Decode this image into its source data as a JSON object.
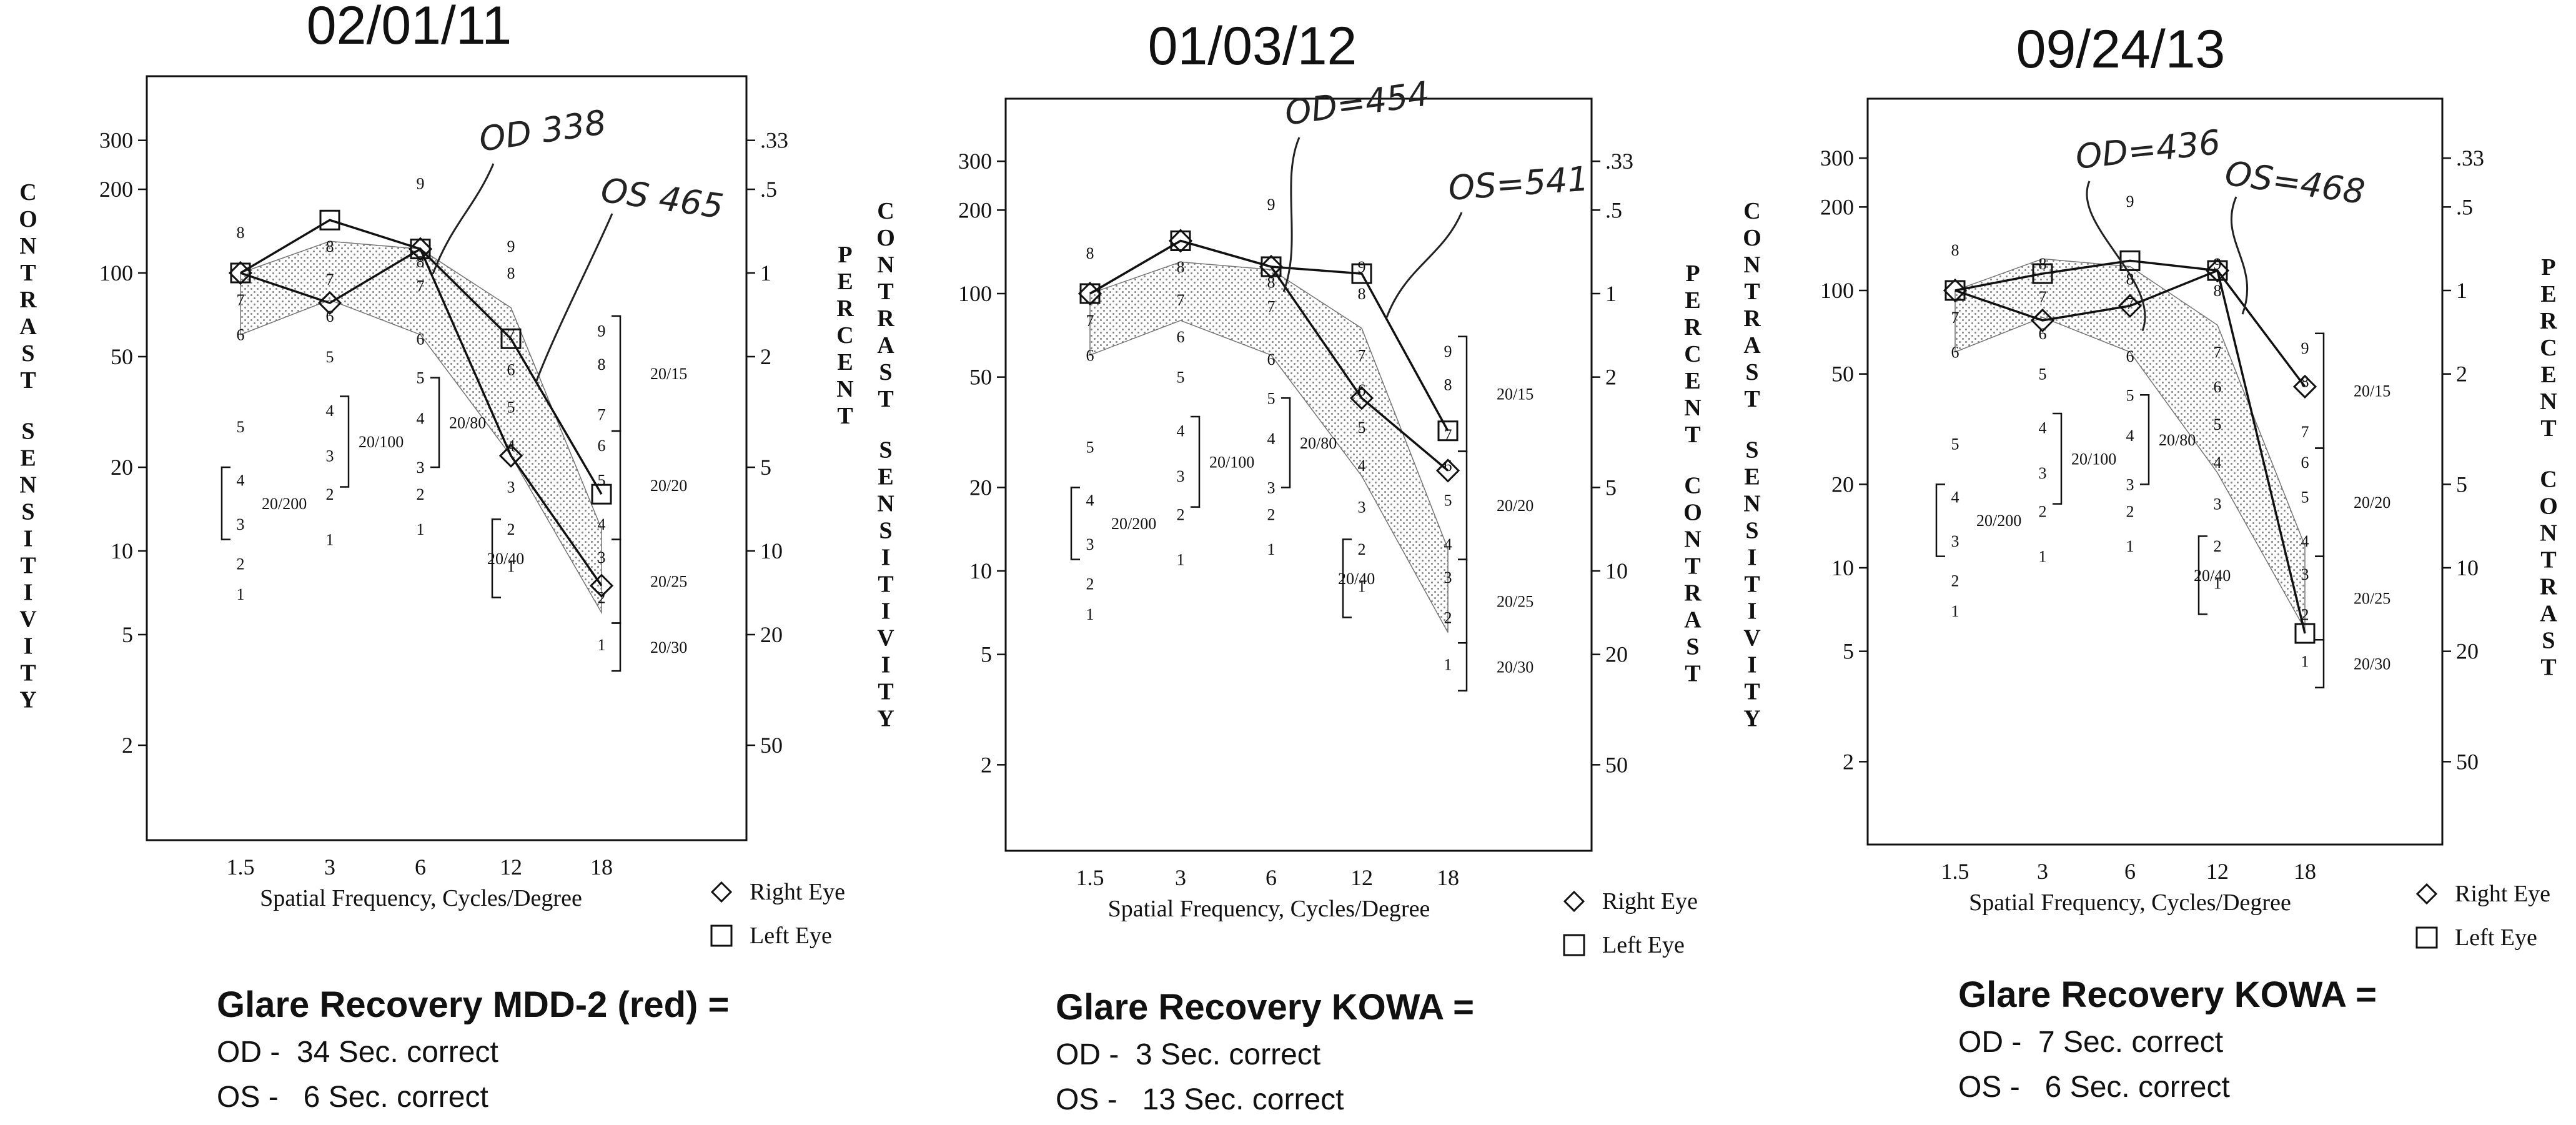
{
  "chart_data": [
    {
      "type": "line",
      "title": "02/01/11",
      "xlabel": "Spatial Frequency, Cycles/Degree",
      "ylabel_left": "CONTRAST SENSITIVITY",
      "ylabel_right": "PERCENT CONTRAST SENSITIVITY",
      "categories": [
        "1.5",
        "3",
        "6",
        "12",
        "18"
      ],
      "left_ticks": [
        "300",
        "200",
        "100",
        "50",
        "20",
        "10",
        "5",
        "2"
      ],
      "right_ticks": [
        ".33",
        ".5",
        "1",
        "2",
        "5",
        "10",
        "20",
        "50"
      ],
      "ylim": [
        1.2,
        500
      ],
      "yscale": "log",
      "series": [
        {
          "name": "Right Eye",
          "marker": "diamond",
          "values": [
            100,
            78,
            122,
            22,
            7.5
          ]
        },
        {
          "name": "Left Eye",
          "marker": "square",
          "values": [
            100,
            155,
            122,
            58,
            16
          ]
        }
      ],
      "normal_band": {
        "upper": [
          100,
          130,
          122,
          75,
          12
        ],
        "lower": [
          60,
          80,
          60,
          22,
          6
        ]
      },
      "acuity_labels": [
        "20/200",
        "20/100",
        "20/80",
        "20/40",
        "20/15",
        "20/20",
        "20/25",
        "20/30"
      ],
      "annotations": [
        "OD 338",
        "OS 465"
      ],
      "legend": [
        "Right Eye",
        "Left Eye"
      ]
    },
    {
      "type": "line",
      "title": "01/03/12",
      "xlabel": "Spatial Frequency, Cycles/Degree",
      "ylabel_left": "PERCENT CONTRAST",
      "ylabel_right": "CONTRAST SENSITIVITY",
      "categories": [
        "1.5",
        "3",
        "6",
        "12",
        "18"
      ],
      "left_ticks": [
        "300",
        "200",
        "100",
        "50",
        "20",
        "10",
        "5",
        "2"
      ],
      "right_ticks": [
        ".33",
        ".5",
        "1",
        "2",
        "5",
        "10",
        "20",
        "50"
      ],
      "ylim": [
        1.2,
        500
      ],
      "yscale": "log",
      "series": [
        {
          "name": "Right Eye",
          "marker": "diamond",
          "values": [
            100,
            155,
            125,
            42,
            23
          ]
        },
        {
          "name": "Left Eye",
          "marker": "square",
          "values": [
            100,
            155,
            125,
            118,
            32
          ]
        }
      ],
      "normal_band": {
        "upper": [
          100,
          130,
          122,
          75,
          12
        ],
        "lower": [
          60,
          80,
          60,
          22,
          6
        ]
      },
      "acuity_labels": [
        "20/200",
        "20/100",
        "20/80",
        "20/40",
        "20/15",
        "20/20",
        "20/25",
        "20/30"
      ],
      "annotations": [
        "OD=454",
        "OS=541"
      ],
      "legend": [
        "Right Eye",
        "Left Eye"
      ]
    },
    {
      "type": "line",
      "title": "09/24/13",
      "xlabel": "Spatial Frequency, Cycles/Degree",
      "ylabel_left": "",
      "ylabel_right": "PERCENT CONTRAST",
      "categories": [
        "1.5",
        "3",
        "6",
        "12",
        "18"
      ],
      "left_ticks": [
        "300",
        "200",
        "100",
        "50",
        "20",
        "10",
        "5",
        "2"
      ],
      "right_ticks": [
        ".33",
        ".5",
        "1",
        "2",
        "5",
        "10",
        "20",
        "50"
      ],
      "ylim": [
        1.2,
        500
      ],
      "yscale": "log",
      "series": [
        {
          "name": "Right Eye",
          "marker": "diamond",
          "values": [
            100,
            78,
            88,
            118,
            45
          ]
        },
        {
          "name": "Left Eye",
          "marker": "square",
          "values": [
            100,
            115,
            128,
            118,
            5.8
          ]
        }
      ],
      "normal_band": {
        "upper": [
          100,
          130,
          122,
          75,
          12
        ],
        "lower": [
          60,
          80,
          60,
          22,
          6
        ]
      },
      "acuity_labels": [
        "20/200",
        "20/100",
        "20/80",
        "20/40",
        "20/15",
        "20/20",
        "20/25",
        "20/30"
      ],
      "annotations": [
        "OD=436",
        "OS=468"
      ],
      "legend": [
        "Right Eye",
        "Left Eye"
      ]
    }
  ],
  "captions": [
    {
      "title": "Glare Recovery MDD-2 (red) =",
      "od": "OD -  34 Sec. correct",
      "os": "OS -   6 Sec. correct"
    },
    {
      "title": "Glare Recovery KOWA =",
      "od": "OD -  3 Sec. correct",
      "os": "OS -   13 Sec. correct"
    },
    {
      "title": "Glare Recovery KOWA =",
      "od": "OD -  7 Sec. correct",
      "os": "OS -   6 Sec. correct"
    }
  ]
}
